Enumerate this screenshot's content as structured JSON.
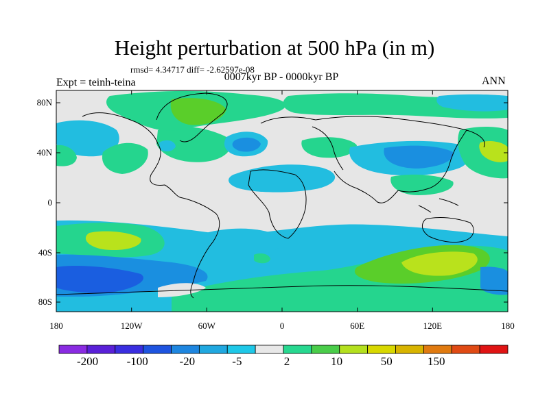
{
  "title": "Height perturbation at 500 hPa (in m)",
  "stats": "rmsd= 4.34717 diff= -2.62597e-08",
  "subtitle": "0007kyr BP - 0000kyr BP",
  "experiment": "Expt = teinh-teina",
  "season": "ANN",
  "lat_ticks": [
    "80N",
    "40N",
    "0",
    "40S",
    "80S"
  ],
  "lon_ticks": [
    "180",
    "120W",
    "60W",
    "0",
    "60E",
    "120E",
    "180"
  ],
  "legend": {
    "labels": [
      "-200",
      "-100",
      "-20",
      "-5",
      "2",
      "10",
      "50",
      "150"
    ],
    "colors": [
      "#8a2be2",
      "#5a20d8",
      "#3a2ee0",
      "#1e54e0",
      "#1e86e0",
      "#20a8e0",
      "#1ec8e8",
      "#e8e8e8",
      "#28d890",
      "#4acd4a",
      "#b4e01e",
      "#d8d800",
      "#d8b400",
      "#e07a10",
      "#e04a14",
      "#e01414"
    ]
  },
  "map_colors": {
    "background": "#e6e6e6",
    "light_blue": "#22bde0",
    "mid_blue": "#1a8fe0",
    "dark_blue": "#1a5ee0",
    "light_green": "#25d58e",
    "green": "#5ace2a",
    "yellow_green": "#b9e21c",
    "coast": "#000000"
  }
}
